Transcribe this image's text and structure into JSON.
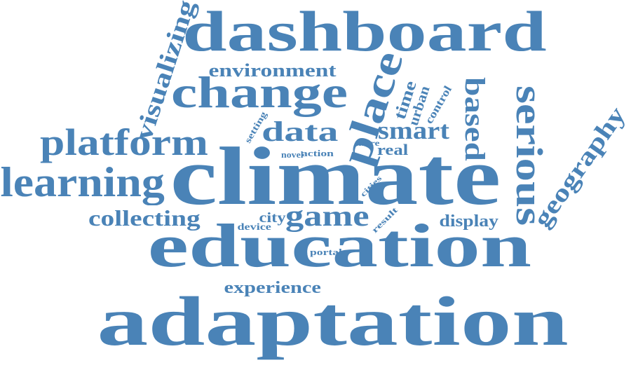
{
  "word_cloud": {
    "color": "#4a83b7",
    "background": "#ffffff",
    "words": [
      {
        "id": "climate",
        "text": "climate",
        "orientation": "horizontal"
      },
      {
        "id": "adaptation",
        "text": "adaptation",
        "orientation": "horizontal"
      },
      {
        "id": "education",
        "text": "education",
        "orientation": "horizontal"
      },
      {
        "id": "dashboard",
        "text": "dashboard",
        "orientation": "horizontal"
      },
      {
        "id": "change",
        "text": "change",
        "orientation": "horizontal"
      },
      {
        "id": "learning",
        "text": "learning",
        "orientation": "horizontal"
      },
      {
        "id": "platform",
        "text": "platform",
        "orientation": "horizontal"
      },
      {
        "id": "place",
        "text": "place",
        "orientation": "vertical"
      },
      {
        "id": "serious",
        "text": "serious",
        "orientation": "vertical"
      },
      {
        "id": "visualizing",
        "text": "visualizing",
        "orientation": "vertical"
      },
      {
        "id": "geography",
        "text": "geography",
        "orientation": "vertical"
      },
      {
        "id": "game",
        "text": "game",
        "orientation": "horizontal"
      },
      {
        "id": "based",
        "text": "based",
        "orientation": "vertical"
      },
      {
        "id": "data",
        "text": "data",
        "orientation": "horizontal"
      },
      {
        "id": "smart",
        "text": "smart",
        "orientation": "horizontal"
      },
      {
        "id": "collecting",
        "text": "collecting",
        "orientation": "horizontal"
      },
      {
        "id": "environment",
        "text": "environment",
        "orientation": "horizontal"
      },
      {
        "id": "experience",
        "text": "experience",
        "orientation": "horizontal"
      },
      {
        "id": "display",
        "text": "display",
        "orientation": "horizontal"
      },
      {
        "id": "time",
        "text": "time",
        "orientation": "vertical"
      },
      {
        "id": "real",
        "text": "real",
        "orientation": "horizontal"
      },
      {
        "id": "urban",
        "text": "urban",
        "orientation": "vertical"
      },
      {
        "id": "city",
        "text": "city",
        "orientation": "horizontal"
      },
      {
        "id": "control",
        "text": "control",
        "orientation": "vertical"
      },
      {
        "id": "device",
        "text": "device",
        "orientation": "horizontal"
      },
      {
        "id": "setting",
        "text": "setting",
        "orientation": "vertical"
      },
      {
        "id": "action",
        "text": "action",
        "orientation": "horizontal"
      },
      {
        "id": "novel",
        "text": "novel",
        "orientation": "horizontal"
      },
      {
        "id": "more",
        "text": "more",
        "orientation": "horizontal"
      },
      {
        "id": "cities",
        "text": "cities",
        "orientation": "horizontal"
      },
      {
        "id": "result",
        "text": "result",
        "orientation": "vertical"
      },
      {
        "id": "portal",
        "text": "portal",
        "orientation": "horizontal"
      }
    ]
  }
}
